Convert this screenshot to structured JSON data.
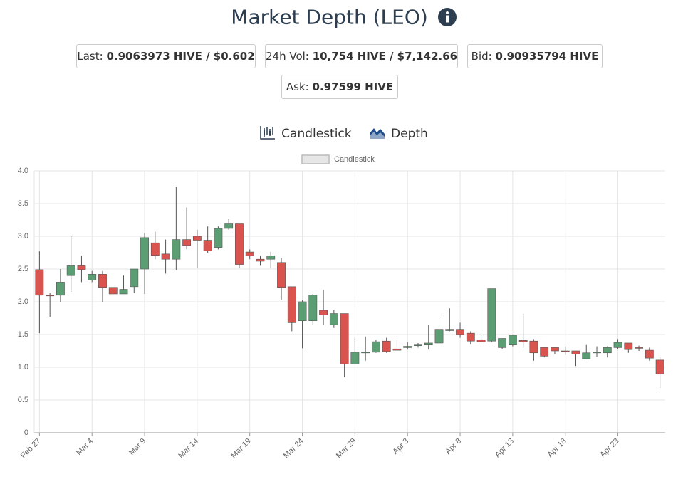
{
  "header": {
    "title": "Market Depth (LEO)"
  },
  "stats": [
    {
      "label": "Last:",
      "value": "0.9063973 HIVE / $0.602"
    },
    {
      "label": "24h Vol:",
      "value": "10,754 HIVE / $7,142.66"
    },
    {
      "label": "Bid:",
      "value": "0.90935794 HIVE"
    },
    {
      "label": "Ask:",
      "value": "0.97599 HIVE"
    }
  ],
  "tabs": [
    "Candlestick",
    "Depth"
  ],
  "chart_data": {
    "type": "candlestick",
    "categories": [
      "Feb 27",
      null,
      null,
      null,
      null,
      "Mar 4",
      null,
      null,
      null,
      null,
      "Mar 9",
      null,
      null,
      null,
      null,
      "Mar 14",
      null,
      null,
      null,
      null,
      "Mar 19",
      null,
      null,
      null,
      null,
      "Mar 24",
      null,
      null,
      null,
      null,
      "Mar 29",
      null,
      null,
      null,
      null,
      "Apr 3",
      null,
      null,
      null,
      null,
      "Apr 8",
      null,
      null,
      null,
      null,
      "Apr 13",
      null,
      null,
      null,
      null,
      "Apr 18",
      null,
      null,
      null,
      null,
      "Apr 23",
      null,
      null,
      null,
      null
    ],
    "series": [
      {
        "name": "Candlestick",
        "up_color": "#5b9e74",
        "down_color": "#d9534f",
        "open": [
          2.49,
          2.1,
          2.1,
          2.4,
          2.55,
          2.33,
          2.42,
          2.22,
          2.12,
          2.23,
          2.5,
          2.9,
          2.73,
          2.65,
          2.95,
          3.0,
          2.94,
          2.83,
          3.12,
          3.19,
          2.76,
          2.65,
          2.65,
          2.6,
          2.23,
          1.71,
          1.71,
          1.87,
          1.65,
          1.82,
          1.05,
          1.22,
          1.23,
          1.4,
          1.28,
          1.3,
          1.33,
          1.34,
          1.37,
          1.56,
          1.58,
          1.52,
          1.42,
          1.4,
          1.3,
          1.34,
          1.41,
          1.4,
          1.3,
          1.3,
          1.25,
          1.25,
          1.13,
          1.22,
          1.22,
          1.3,
          1.37,
          1.3,
          1.26,
          1.11
        ],
        "high": [
          2.77,
          2.13,
          2.5,
          3.0,
          2.7,
          2.47,
          2.47,
          2.22,
          2.4,
          2.5,
          3.05,
          3.07,
          2.95,
          3.75,
          3.44,
          3.1,
          3.15,
          3.15,
          3.27,
          3.19,
          2.8,
          2.7,
          2.76,
          2.67,
          2.23,
          2.02,
          2.12,
          2.18,
          1.87,
          1.82,
          1.47,
          1.47,
          1.42,
          1.45,
          1.42,
          1.38,
          1.37,
          1.65,
          1.75,
          1.9,
          1.68,
          1.55,
          1.5,
          2.2,
          1.44,
          1.5,
          1.82,
          1.43,
          1.3,
          1.3,
          1.32,
          1.25,
          1.34,
          1.32,
          1.32,
          1.43,
          1.37,
          1.33,
          1.3,
          1.15
        ],
        "low": [
          1.52,
          1.77,
          2.0,
          2.15,
          2.3,
          2.3,
          2.0,
          2.12,
          2.12,
          2.13,
          2.12,
          2.65,
          2.43,
          2.48,
          2.8,
          2.52,
          2.75,
          2.8,
          3.1,
          2.52,
          2.65,
          2.55,
          2.52,
          2.03,
          1.55,
          1.29,
          1.65,
          1.65,
          1.6,
          0.85,
          1.05,
          1.1,
          1.22,
          1.22,
          1.25,
          1.27,
          1.3,
          1.27,
          1.35,
          1.55,
          1.45,
          1.35,
          1.38,
          1.38,
          1.28,
          1.32,
          1.3,
          1.1,
          1.15,
          1.2,
          1.19,
          1.02,
          1.12,
          1.16,
          1.15,
          1.28,
          1.22,
          1.25,
          1.1,
          0.68
        ],
        "close": [
          2.1,
          2.09,
          2.3,
          2.55,
          2.49,
          2.42,
          2.22,
          2.12,
          2.19,
          2.5,
          2.98,
          2.71,
          2.65,
          2.95,
          2.86,
          2.94,
          2.78,
          3.12,
          3.19,
          2.57,
          2.7,
          2.62,
          2.7,
          2.22,
          1.68,
          2.0,
          2.1,
          1.8,
          1.82,
          1.05,
          1.23,
          1.23,
          1.39,
          1.24,
          1.26,
          1.32,
          1.34,
          1.37,
          1.58,
          1.58,
          1.5,
          1.4,
          1.39,
          2.2,
          1.44,
          1.49,
          1.39,
          1.22,
          1.17,
          1.25,
          1.24,
          1.2,
          1.22,
          1.23,
          1.3,
          1.38,
          1.27,
          1.29,
          1.14,
          0.9
        ]
      }
    ],
    "ylim": [
      0,
      4
    ],
    "yticks": [
      0,
      {
        "value": 0.5,
        "label": "0.5"
      },
      {
        "value": 1,
        "label": "1.0"
      },
      1.5,
      {
        "value": 2,
        "label": "2.0"
      },
      2.5,
      {
        "value": 3,
        "label": "3.0"
      },
      3.5,
      {
        "value": 4,
        "label": "4.0"
      }
    ],
    "grid": true,
    "legend": "top"
  }
}
